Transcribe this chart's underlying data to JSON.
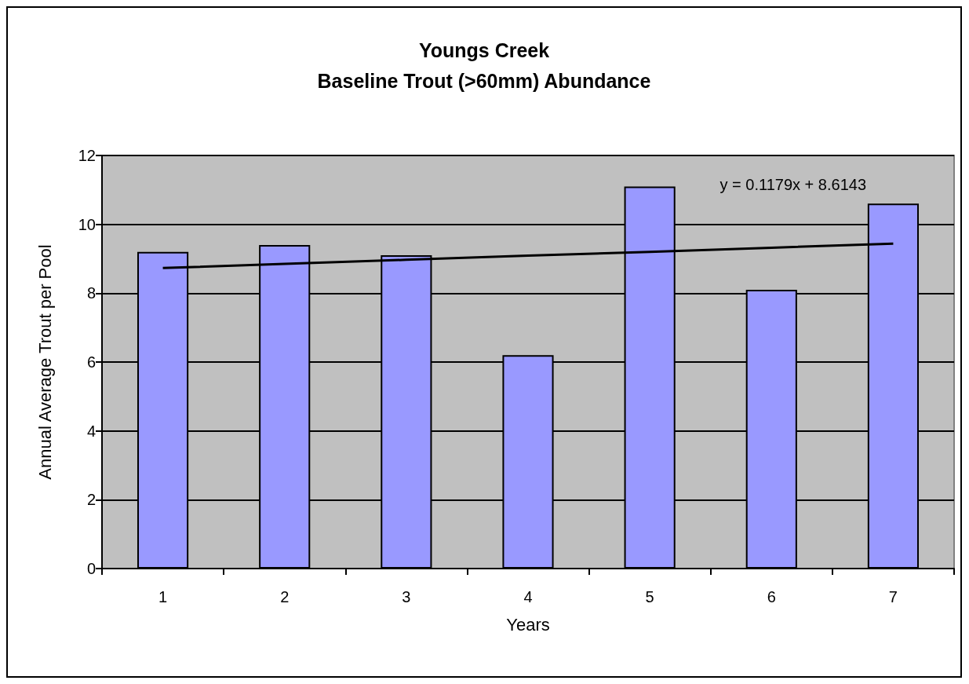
{
  "chart_data": {
    "type": "bar",
    "title": "Youngs Creek",
    "subtitle": "Baseline Trout (>60mm) Abundance",
    "xlabel": "Years",
    "ylabel": "Annual Average Trout per Pool",
    "categories": [
      "1",
      "2",
      "3",
      "4",
      "5",
      "6",
      "7"
    ],
    "series": [
      {
        "color": "#9999ff",
        "values": [
          9.2,
          9.4,
          9.1,
          6.2,
          11.1,
          8.1,
          10.6
        ]
      },
      {
        "type": "line",
        "color": "#000000",
        "values": [
          8.73,
          8.85,
          8.97,
          9.09,
          9.2,
          9.32,
          9.44
        ]
      }
    ],
    "annotations": [
      "y = 0.1179x + 8.6143"
    ],
    "ylim": [
      0,
      12
    ],
    "yticks": [
      0,
      2,
      4,
      6,
      8,
      10,
      12
    ],
    "grid": "y",
    "marker": "none",
    "line_style": "solid"
  }
}
